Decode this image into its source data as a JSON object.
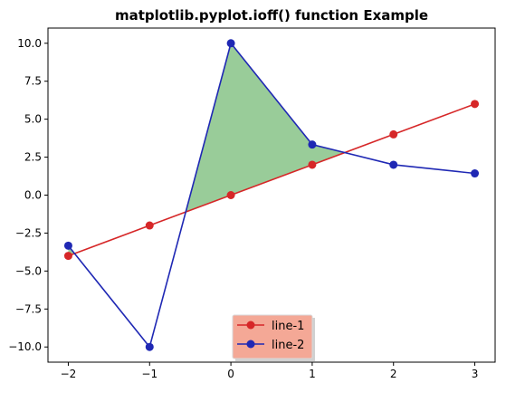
{
  "chart_data": {
    "type": "line",
    "title": "matplotlib.pyplot.ioff() function Example",
    "xlabel": "",
    "ylabel": "",
    "xlim": [
      -2.25,
      3.25
    ],
    "ylim": [
      -11.0,
      11.0
    ],
    "x_ticks": [
      -2,
      -1,
      0,
      1,
      2,
      3
    ],
    "y_ticks": [
      10.0,
      7.5,
      5.0,
      2.5,
      0.0,
      -2.5,
      -5.0,
      -7.5,
      -10.0
    ],
    "x_tick_labels": [
      "−2",
      "−1",
      "0",
      "1",
      "2",
      "3"
    ],
    "y_tick_labels": [
      "10.0",
      "7.5",
      "5.0",
      "2.5",
      "0.0",
      "−2.5",
      "−5.0",
      "−7.5",
      "−10.0"
    ],
    "grid": false,
    "x": [
      -2,
      -1,
      0,
      1,
      2,
      3
    ],
    "series": [
      {
        "name": "line-1",
        "values": [
          -4,
          -2,
          0,
          2,
          4,
          6
        ],
        "color": "#d62728",
        "marker": "circle"
      },
      {
        "name": "line-2",
        "values": [
          -3.33,
          -10,
          10,
          3.33,
          2,
          1.43
        ],
        "color": "#1f28b4",
        "marker": "circle"
      }
    ],
    "fill_between": {
      "description_series": [
        "line-1",
        "line-2"
      ],
      "where": "line-2 > line-1",
      "color": "#7fbf7f",
      "alpha": 0.8
    },
    "legend": {
      "placement": "lower-center",
      "background": "#f4a896",
      "entries": [
        "line-1",
        "line-2"
      ]
    }
  }
}
